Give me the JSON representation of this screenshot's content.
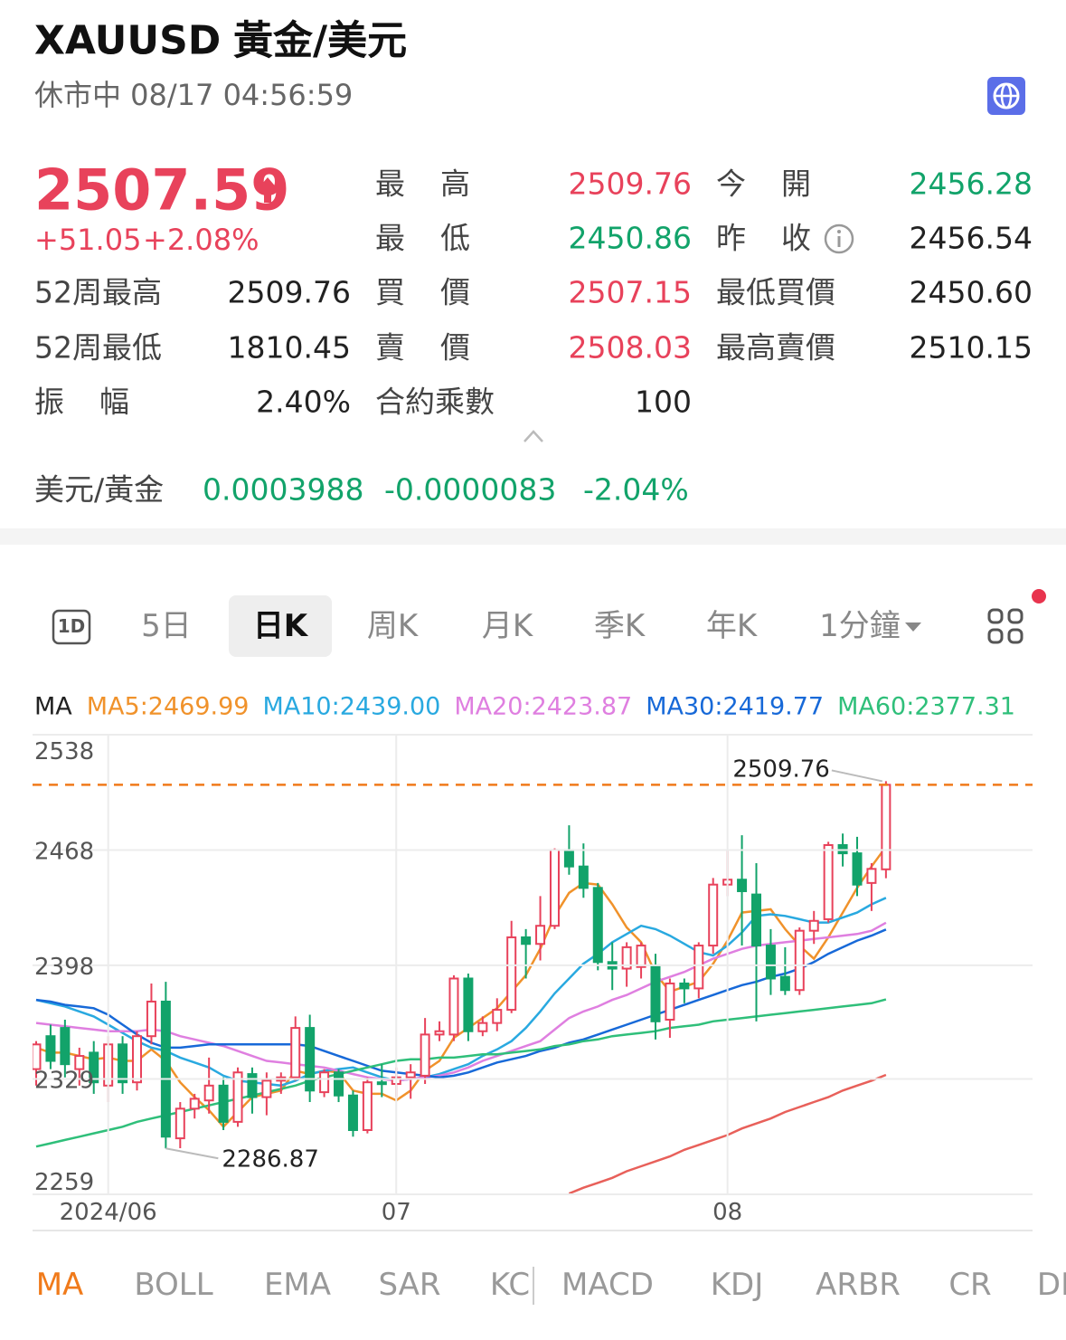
{
  "header": {
    "symbol": "XAUUSD",
    "name": "黃金/美元",
    "status": "休市中 08/17 04:56:59"
  },
  "quote": {
    "price": "2507.59",
    "change": "+51.05",
    "change_percent": "+2.08%"
  },
  "stats": {
    "left": [
      {
        "label": "52周最高",
        "value": "2509.76"
      },
      {
        "label": "52周最低",
        "value": "1810.45"
      },
      {
        "label": "振幅",
        "value": "2.40%"
      }
    ],
    "middle": [
      {
        "label": "最高",
        "value": "2509.76"
      },
      {
        "label": "最低",
        "value": "2450.86"
      },
      {
        "label": "買價",
        "value": "2507.15"
      },
      {
        "label": "賣價",
        "value": "2508.03"
      },
      {
        "label": "合約乘數",
        "value": "100"
      }
    ],
    "right": [
      {
        "label": "今開",
        "value": "2456.28"
      },
      {
        "label": "昨收",
        "value": "2456.54"
      },
      {
        "label": "最低買價",
        "value": "2450.60"
      },
      {
        "label": "最高賣價",
        "value": "2510.15"
      }
    ]
  },
  "inverse": {
    "label": "美元/黃金",
    "price": "0.0003988",
    "change": "-0.0000083",
    "change_percent": "-2.04%"
  },
  "period_tabs": [
    "1D",
    "5日",
    "日K",
    "周K",
    "月K",
    "季K",
    "年K",
    "1分鐘"
  ],
  "indicator_tabs": [
    "MA",
    "BOLL",
    "EMA",
    "SAR",
    "KC",
    "MACD",
    "KDJ",
    "ARBR",
    "CR",
    "DI"
  ],
  "chart_data": {
    "type": "candlestick",
    "legend_title": "MA",
    "categories": [
      null,
      null,
      null,
      null,
      null,
      "2024/06",
      null,
      null,
      null,
      null,
      null,
      null,
      null,
      null,
      null,
      null,
      null,
      null,
      null,
      null,
      null,
      null,
      null,
      null,
      null,
      "07",
      null,
      null,
      null,
      null,
      null,
      null,
      null,
      null,
      null,
      null,
      null,
      null,
      null,
      null,
      null,
      null,
      null,
      null,
      null,
      null,
      null,
      null,
      "08",
      null,
      null,
      null,
      null,
      null,
      null,
      null,
      null,
      null,
      null,
      null
    ],
    "open": [
      2335,
      2355,
      2360,
      2335,
      2345,
      2325,
      2350,
      2327,
      2355,
      2376,
      2293,
      2311,
      2316,
      2325,
      2303,
      2332,
      2318,
      2328,
      2330,
      2360,
      2321,
      2333,
      2319,
      2298,
      2327,
      2326,
      2330,
      2331,
      2356,
      2356,
      2390,
      2358,
      2363,
      2371,
      2415,
      2411,
      2422,
      2468,
      2458,
      2445,
      2400,
      2396,
      2397,
      2398,
      2365,
      2387,
      2384,
      2410,
      2447,
      2450,
      2441,
      2410,
      2391,
      2383,
      2419,
      2426,
      2471,
      2466,
      2448,
      2456.28
    ],
    "high": [
      2352,
      2362,
      2365,
      2348,
      2352,
      2355,
      2355,
      2358,
      2387,
      2388,
      2315,
      2320,
      2342,
      2330,
      2336,
      2336,
      2333,
      2333,
      2367,
      2368,
      2335,
      2335,
      2322,
      2330,
      2338,
      2336,
      2338,
      2366,
      2364,
      2392,
      2393,
      2367,
      2378,
      2425,
      2420,
      2440,
      2469,
      2483,
      2472,
      2448,
      2412,
      2412,
      2412,
      2405,
      2390,
      2390,
      2412,
      2451,
      2468,
      2477,
      2460,
      2420,
      2409,
      2421,
      2431,
      2473,
      2478,
      2476,
      2460,
      2509.76
    ],
    "low": [
      2325,
      2335,
      2330,
      2325,
      2320,
      2315,
      2320,
      2322,
      2350,
      2286.87,
      2287,
      2305,
      2308,
      2298,
      2300,
      2308,
      2307,
      2320,
      2328,
      2315,
      2318,
      2315,
      2294,
      2296,
      2318,
      2318,
      2317,
      2326,
      2352,
      2352,
      2352,
      2355,
      2358,
      2369,
      2390,
      2401,
      2420,
      2453,
      2439,
      2395,
      2383,
      2385,
      2390,
      2353,
      2354,
      2375,
      2378,
      2405,
      2440,
      2410,
      2364,
      2380,
      2380,
      2380,
      2411,
      2424,
      2458,
      2440,
      2431,
      2450.86
    ],
    "close": [
      2350,
      2340,
      2338,
      2343,
      2327,
      2350,
      2327,
      2355,
      2376,
      2294,
      2311,
      2317,
      2325,
      2303,
      2333,
      2318,
      2328,
      2330,
      2360,
      2322,
      2333,
      2319,
      2298,
      2327,
      2326,
      2330,
      2333,
      2356,
      2358,
      2390,
      2358,
      2363,
      2371,
      2415,
      2411,
      2422,
      2468,
      2458,
      2445,
      2400,
      2396,
      2409,
      2410,
      2364,
      2387,
      2384,
      2410,
      2447,
      2450,
      2443,
      2410,
      2390,
      2383,
      2419,
      2425,
      2471,
      2466,
      2447,
      2456.54,
      2507.59
    ],
    "up_color": "#e8425b",
    "down_color": "#12a36a",
    "series": [
      {
        "name": "MA5:2469.99",
        "color": "#f0922b",
        "values": [
          2348,
          2345,
          2345,
          2343,
          2341,
          2342,
          2340,
          2340,
          2347,
          2340,
          2327,
          2318,
          2310,
          2300,
          2309,
          2318,
          2320,
          2322,
          2334,
          2332,
          2334,
          2333,
          2322,
          2320,
          2320,
          2316,
          2322,
          2334,
          2340,
          2354,
          2360,
          2366,
          2372,
          2382,
          2392,
          2408,
          2428,
          2442,
          2448,
          2447,
          2435,
          2421,
          2412,
          2393,
          2382,
          2385,
          2388,
          2399,
          2413,
          2430,
          2431,
          2432,
          2420,
          2410,
          2402,
          2415,
          2430,
          2445,
          2458,
          2469.99
        ]
      },
      {
        "name": "MA10:2439.00",
        "color": "#29a9e0",
        "values": [
          2377,
          2375,
          2373,
          2370,
          2367,
          2362,
          2357,
          2352,
          2348,
          2346,
          2342,
          2339,
          2336,
          2331,
          2328,
          2327,
          2326,
          2325,
          2328,
          2332,
          2334,
          2335,
          2336,
          2333,
          2330,
          2328,
          2329,
          2330,
          2332,
          2335,
          2338,
          2343,
          2347,
          2352,
          2360,
          2370,
          2381,
          2390,
          2399,
          2405,
          2412,
          2417,
          2422,
          2420,
          2416,
          2411,
          2406,
          2404,
          2410,
          2418,
          2428,
          2429,
          2428,
          2426,
          2424,
          2424,
          2427,
          2430,
          2435,
          2439.0
        ]
      },
      {
        "name": "MA20:2423.87",
        "color": "#df7fe0",
        "values": [
          2363,
          2362,
          2361,
          2360,
          2359,
          2358,
          2358,
          2358,
          2359,
          2358,
          2355,
          2353,
          2351,
          2349,
          2346,
          2343,
          2340,
          2339,
          2338,
          2337,
          2336,
          2334,
          2332,
          2330,
          2329,
          2328,
          2329,
          2330,
          2331,
          2333,
          2336,
          2340,
          2343,
          2346,
          2349,
          2352,
          2359,
          2366,
          2370,
          2373,
          2377,
          2380,
          2384,
          2388,
          2391,
          2394,
          2398,
          2402,
          2405,
          2408,
          2410,
          2411,
          2412,
          2413,
          2414,
          2415,
          2416,
          2417,
          2419,
          2423.87
        ]
      },
      {
        "name": "MA30:2419.77",
        "color": "#1769d8",
        "values": [
          2377,
          2376,
          2374,
          2373,
          2372,
          2368,
          2362,
          2356,
          2351,
          2348,
          2348,
          2349,
          2350,
          2350,
          2350,
          2350,
          2350,
          2350,
          2350,
          2349,
          2346,
          2343,
          2340,
          2337,
          2334,
          2333,
          2332,
          2331,
          2330,
          2331,
          2333,
          2336,
          2339,
          2341,
          2343,
          2346,
          2348,
          2351,
          2353,
          2356,
          2359,
          2362,
          2365,
          2368,
          2371,
          2374,
          2377,
          2380,
          2383,
          2386,
          2388,
          2391,
          2393,
          2396,
          2400,
          2405,
          2409,
          2413,
          2416,
          2419.77
        ]
      },
      {
        "name": "MA60:2377.31",
        "color": "#2fbf7a",
        "values": [
          2288,
          2290,
          2292,
          2294,
          2296,
          2298,
          2300,
          2303,
          2305,
          2307,
          2309,
          2311,
          2313,
          2315,
          2317,
          2319,
          2321,
          2323,
          2325,
          2328,
          2330,
          2332,
          2334,
          2336,
          2338,
          2340,
          2341,
          2341,
          2342,
          2342,
          2343,
          2344,
          2344,
          2345,
          2346,
          2347,
          2349,
          2350,
          2352,
          2353,
          2355,
          2356,
          2357,
          2358,
          2360,
          2361,
          2362,
          2364,
          2365,
          2366,
          2367,
          2368,
          2369,
          2370,
          2371,
          2372,
          2373,
          2374,
          2375,
          2377.31
        ]
      },
      {
        "name": "M",
        "color": "#e8605a",
        "values": [
          null,
          null,
          null,
          null,
          null,
          null,
          null,
          null,
          null,
          null,
          null,
          null,
          null,
          null,
          null,
          null,
          null,
          null,
          null,
          null,
          null,
          null,
          null,
          null,
          null,
          null,
          null,
          null,
          null,
          null,
          null,
          null,
          null,
          null,
          null,
          null,
          null,
          2259.5,
          2263,
          2266,
          2269,
          2273,
          2276,
          2279,
          2282,
          2286,
          2289,
          2292,
          2295,
          2299,
          2302,
          2305,
          2309,
          2312,
          2315,
          2318,
          2322,
          2325,
          2328,
          2331.5
        ]
      }
    ],
    "ylim": [
      2259,
      2538
    ],
    "yticks": [
      2538,
      2468,
      2398,
      2329,
      2259
    ],
    "grid": true,
    "price_line": 2507.59,
    "high_label": 2509.76,
    "low_label": 2286.87
  }
}
